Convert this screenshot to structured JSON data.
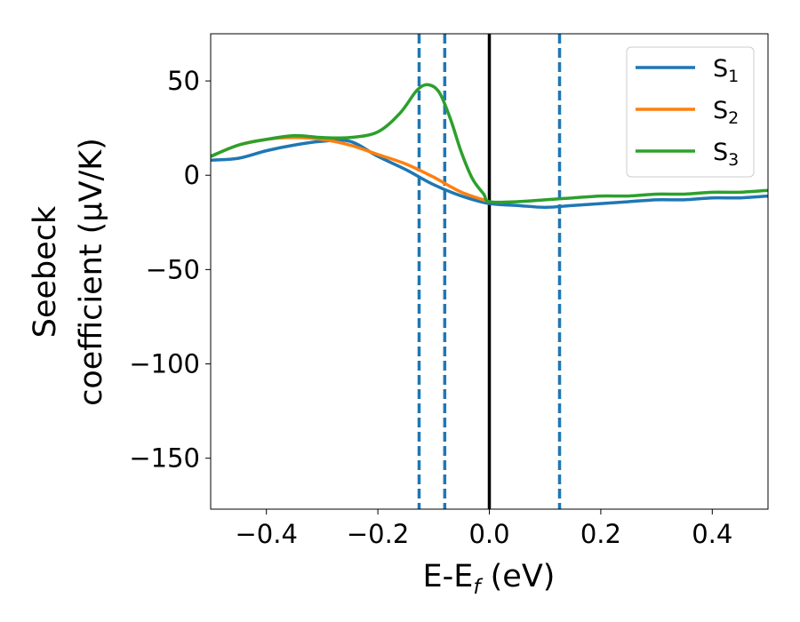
{
  "chart_data": {
    "type": "line",
    "title": "",
    "xlabel": {
      "main": "E-E",
      "sub": "f",
      "unit": " (eV)"
    },
    "ylabel": {
      "line1": "Seebeck",
      "line2": "coefficient  (μV/K)"
    },
    "xlim": [
      -0.5,
      0.5
    ],
    "ylim": [
      -177,
      75
    ],
    "x_ticks": [
      -0.4,
      -0.2,
      0.0,
      0.2,
      0.4
    ],
    "x_tick_labels": [
      "−0.4",
      "−0.2",
      "0.0",
      "0.2",
      "0.4"
    ],
    "y_ticks": [
      50,
      0,
      -50,
      -100,
      -150
    ],
    "y_tick_labels": [
      "50",
      "0",
      "−50",
      "−100",
      "−150"
    ],
    "grid": false,
    "legend_position": "top-right",
    "series": [
      {
        "name": {
          "main": "S",
          "sub": "1"
        },
        "color": "#1f77b4",
        "x": [
          -0.5,
          -0.45,
          -0.4,
          -0.35,
          -0.3,
          -0.25,
          -0.2,
          -0.15,
          -0.1,
          -0.05,
          0.0,
          0.05,
          0.1,
          0.15,
          0.2,
          0.25,
          0.3,
          0.35,
          0.4,
          0.45,
          0.5
        ],
        "y": [
          8,
          9,
          13,
          16,
          18,
          18,
          10,
          3,
          -5,
          -11,
          -15,
          -16,
          -17,
          -16,
          -15,
          -14,
          -13,
          -13,
          -12,
          -12,
          -11
        ]
      },
      {
        "name": {
          "main": "S",
          "sub": "2"
        },
        "color": "#ff7f0e",
        "x": [
          -0.5,
          -0.45,
          -0.4,
          -0.35,
          -0.3,
          -0.25,
          -0.2,
          -0.15,
          -0.1,
          -0.05,
          0.0
        ],
        "y": [
          10,
          16,
          19,
          20,
          19,
          16,
          11,
          6,
          -1,
          -9,
          -14
        ]
      },
      {
        "name": {
          "main": "S",
          "sub": "3"
        },
        "color": "#2ca02c",
        "x": [
          -0.5,
          -0.45,
          -0.4,
          -0.35,
          -0.3,
          -0.25,
          -0.2,
          -0.16,
          -0.13,
          -0.11,
          -0.09,
          -0.07,
          -0.05,
          -0.03,
          -0.01,
          0.0,
          0.05,
          0.1,
          0.15,
          0.2,
          0.25,
          0.3,
          0.35,
          0.4,
          0.45,
          0.5
        ],
        "y": [
          10,
          16,
          19,
          21,
          20,
          20,
          23,
          33,
          45,
          48,
          44,
          30,
          12,
          -2,
          -10,
          -14,
          -14,
          -13,
          -12,
          -11,
          -11,
          -10,
          -10,
          -9,
          -9,
          -8
        ]
      }
    ],
    "vlines": [
      {
        "x": -0.126,
        "color": "#1f77b4",
        "style": "dashed"
      },
      {
        "x": -0.08,
        "color": "#1f77b4",
        "style": "dashed"
      },
      {
        "x": 0.0,
        "color": "#000000",
        "style": "solid"
      },
      {
        "x": 0.126,
        "color": "#1f77b4",
        "style": "dashed"
      }
    ]
  }
}
